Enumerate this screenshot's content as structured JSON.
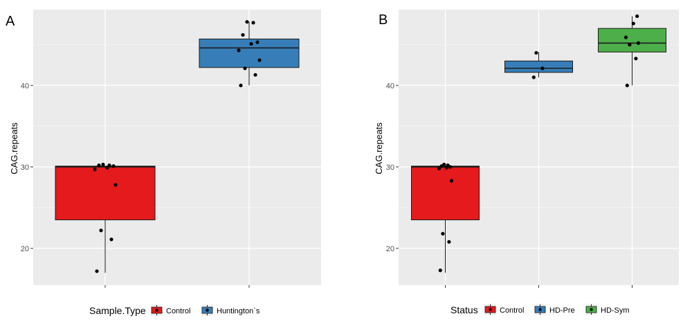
{
  "chart_data": [
    {
      "type": "box",
      "panel_label": "A",
      "ylabel": "CAG.repeats",
      "ylim": [
        15.5,
        49.3
      ],
      "yticks": [
        20,
        30,
        40
      ],
      "grid": true,
      "legend_title": "Sample.Type",
      "legend_position": "bottom",
      "categories": [
        {
          "name": "Control",
          "color": "#E41A1C",
          "q1": 23.5,
          "median": 30.0,
          "q3": 30.1,
          "whisker_low": 17.0,
          "whisker_high": 30.1,
          "points": [
            17.2,
            21.1,
            22.2,
            27.8,
            29.7,
            29.9,
            30.1,
            30.2,
            30.2,
            30.3
          ]
        },
        {
          "name": "Huntington`s",
          "color": "#377EB8",
          "q1": 42.2,
          "median": 44.6,
          "q3": 45.7,
          "whisker_low": 40.0,
          "whisker_high": 47.8,
          "points": [
            40.0,
            41.3,
            42.1,
            43.1,
            44.3,
            45.1,
            45.3,
            46.2,
            47.7,
            47.8
          ]
        }
      ]
    },
    {
      "type": "box",
      "panel_label": "B",
      "ylabel": "CAG.repeats",
      "ylim": [
        15.5,
        49.3
      ],
      "yticks": [
        20,
        30,
        40
      ],
      "grid": true,
      "legend_title": "Status",
      "legend_position": "bottom",
      "categories": [
        {
          "name": "Control",
          "color": "#E41A1C",
          "q1": 23.5,
          "median": 30.0,
          "q3": 30.1,
          "whisker_low": 17.0,
          "whisker_high": 30.1,
          "points": [
            17.3,
            20.8,
            21.8,
            28.3,
            29.8,
            29.9,
            30.0,
            30.1,
            30.2,
            30.3
          ]
        },
        {
          "name": "HD-Pre",
          "color": "#377EB8",
          "q1": 41.6,
          "median": 42.1,
          "q3": 43.0,
          "whisker_low": 41.0,
          "whisker_high": 44.1,
          "points": [
            41.0,
            42.1,
            44.0
          ]
        },
        {
          "name": "HD-Sym",
          "color": "#4DAF4A",
          "q1": 44.1,
          "median": 45.2,
          "q3": 47.0,
          "whisker_low": 40.0,
          "whisker_high": 48.5,
          "points": [
            40.0,
            43.3,
            45.0,
            45.2,
            45.9,
            47.6,
            48.5
          ]
        }
      ]
    }
  ]
}
